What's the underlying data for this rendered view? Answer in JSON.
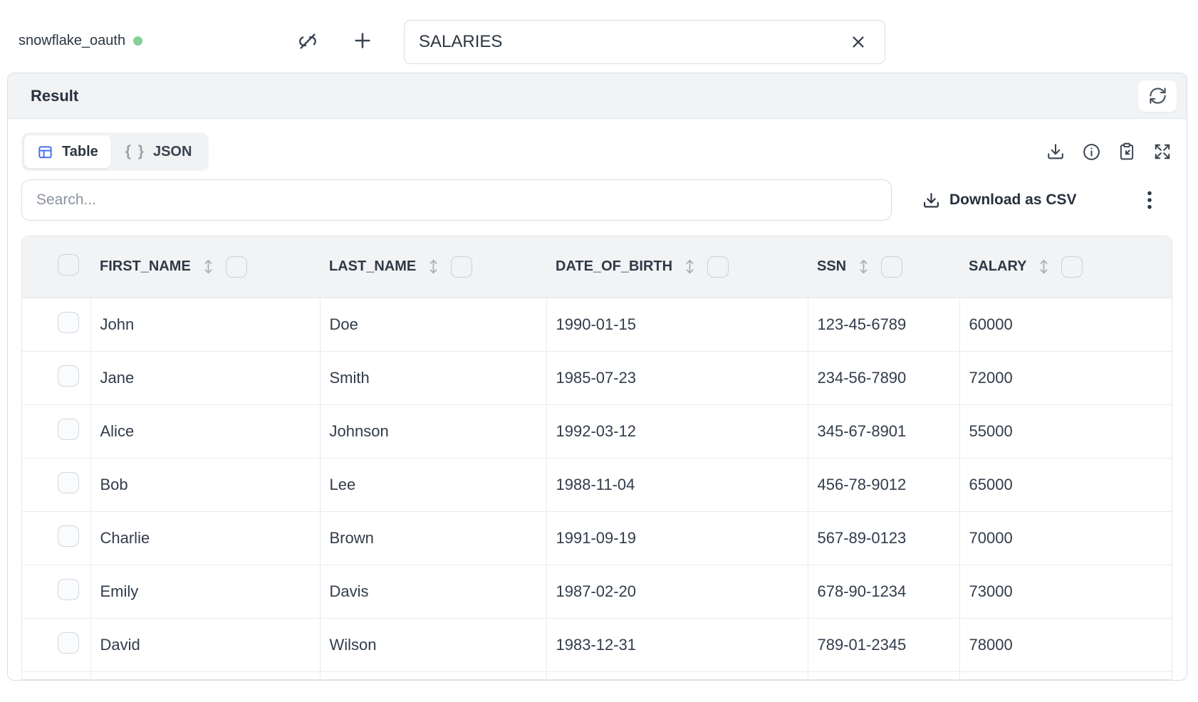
{
  "colors": {
    "accent_blue": "#3f6cf5",
    "status_green": "#84cf9a",
    "text_dark": "#313b49",
    "border_light": "#e5e8ec",
    "header_bg": "#f1f3f4"
  },
  "connection": {
    "name": "snowflake_oauth",
    "status_icon": "status-dot-green"
  },
  "topbar": {
    "icons": [
      "link-off-icon",
      "plus-icon"
    ],
    "table_select": {
      "value": "SALARIES",
      "clear_icon": "x-icon"
    }
  },
  "result": {
    "title": "Result",
    "refresh_icon": "refresh-icon"
  },
  "view_tabs": {
    "table": {
      "label": "Table",
      "icon": "table-grid-icon",
      "active": true
    },
    "json": {
      "label": "JSON",
      "braces": "{ }",
      "active": false
    }
  },
  "result_toolbar": {
    "icons": [
      "download-icon",
      "info-icon",
      "clipboard-paste-icon",
      "expand-icon"
    ]
  },
  "search": {
    "placeholder": "Search..."
  },
  "csv": {
    "label": "Download as CSV",
    "icon": "download-icon",
    "menu_icon": "kebab-menu-icon"
  },
  "table": {
    "columns": [
      "FIRST_NAME",
      "LAST_NAME",
      "DATE_OF_BIRTH",
      "SSN",
      "SALARY"
    ],
    "rows": [
      [
        "John",
        "Doe",
        "1990-01-15",
        "123-45-6789",
        "60000"
      ],
      [
        "Jane",
        "Smith",
        "1985-07-23",
        "234-56-7890",
        "72000"
      ],
      [
        "Alice",
        "Johnson",
        "1992-03-12",
        "345-67-8901",
        "55000"
      ],
      [
        "Bob",
        "Lee",
        "1988-11-04",
        "456-78-9012",
        "65000"
      ],
      [
        "Charlie",
        "Brown",
        "1991-09-19",
        "567-89-0123",
        "70000"
      ],
      [
        "Emily",
        "Davis",
        "1987-02-20",
        "678-90-1234",
        "73000"
      ],
      [
        "David",
        "Wilson",
        "1983-12-31",
        "789-01-2345",
        "78000"
      ]
    ],
    "partial_row_visible": true
  }
}
